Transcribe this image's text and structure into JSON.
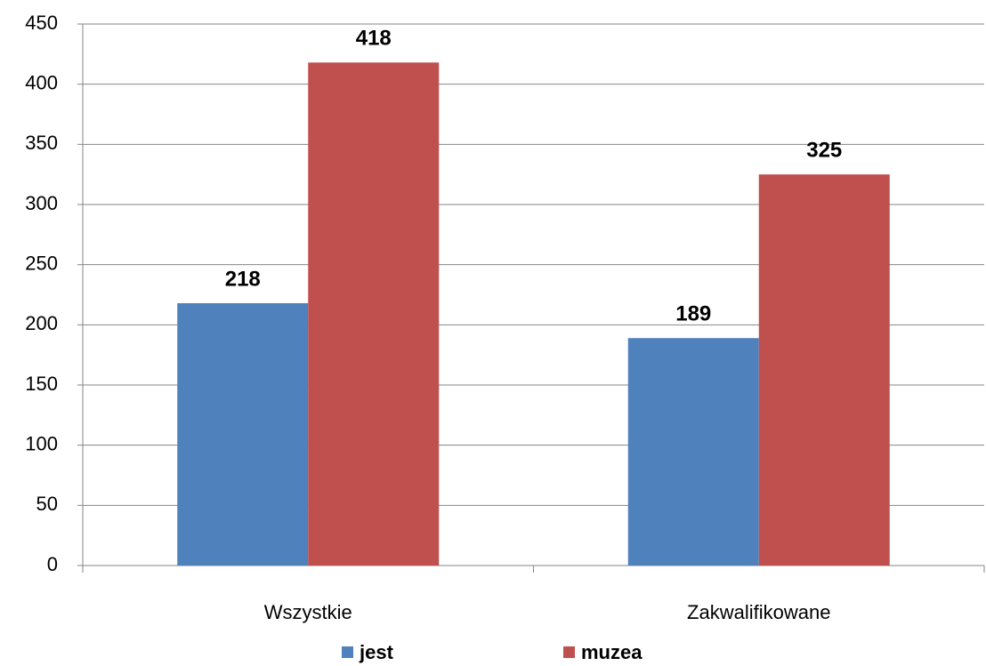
{
  "chart_data": {
    "type": "bar",
    "categories": [
      "Wszystkie",
      "Zakwalifikowane"
    ],
    "series": [
      {
        "name": "jest",
        "color": "#4f81bd",
        "values": [
          218,
          189
        ]
      },
      {
        "name": "muzea",
        "color": "#c0504d",
        "values": [
          418,
          325
        ]
      }
    ],
    "ylim": [
      0,
      450
    ],
    "yticks": [
      0,
      50,
      100,
      150,
      200,
      250,
      300,
      350,
      400,
      450
    ],
    "grid": true,
    "legend": "bottom"
  }
}
